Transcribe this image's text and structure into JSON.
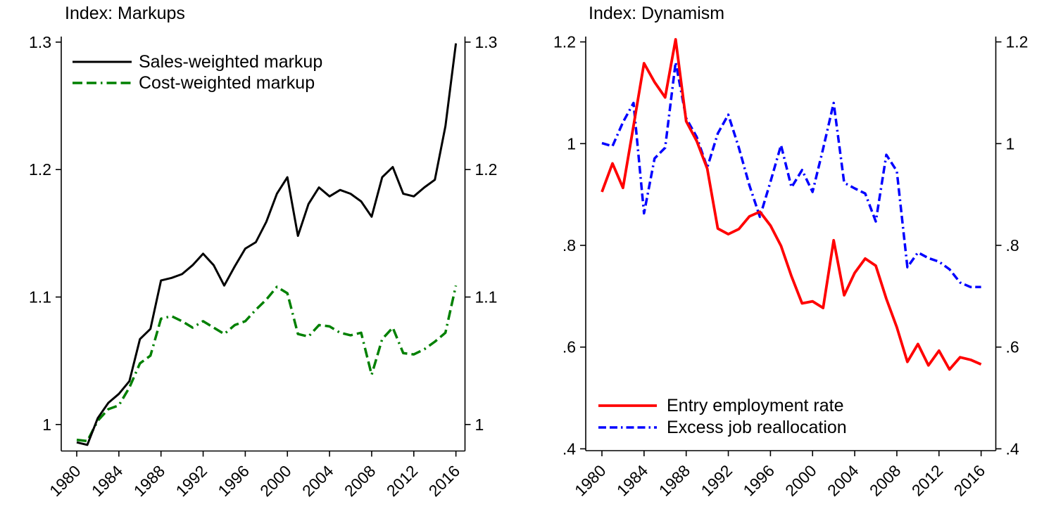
{
  "figure_title": "",
  "background_color": "#ffffff",
  "axis_color": "#000000",
  "chart_data": [
    {
      "panel": "markups",
      "type": "line",
      "title": "Index: Markups",
      "legend_position": "top-left",
      "x_ticks": [
        1980,
        1984,
        1988,
        1992,
        1996,
        2000,
        2004,
        2008,
        2012,
        2016
      ],
      "x_tick_labels": [
        "1980",
        "1984",
        "1988",
        "1992",
        "1996",
        "2000",
        "2004",
        "2008",
        "2012",
        "2016"
      ],
      "y_ticks": [
        1.3,
        1.2,
        1.1,
        1
      ],
      "y_tick_labels": [
        "1.3",
        "1.2",
        "1.1",
        "1"
      ],
      "ylim": [
        0.979,
        1.302
      ],
      "grid": false,
      "years": [
        1980,
        1981,
        1982,
        1983,
        1984,
        1985,
        1986,
        1987,
        1988,
        1989,
        1990,
        1991,
        1992,
        1993,
        1994,
        1995,
        1996,
        1997,
        1998,
        1999,
        2000,
        2001,
        2002,
        2003,
        2004,
        2005,
        2006,
        2007,
        2008,
        2009,
        2010,
        2011,
        2012,
        2013,
        2014,
        2015,
        2016
      ],
      "series": [
        {
          "name": "Sales-weighted markup",
          "color": "#000000",
          "style": "solid",
          "values": [
            0.986,
            0.984,
            1.005,
            1.017,
            1.024,
            1.034,
            1.067,
            1.075,
            1.113,
            1.115,
            1.118,
            1.125,
            1.134,
            1.125,
            1.109,
            1.124,
            1.138,
            1.143,
            1.159,
            1.181,
            1.194,
            1.148,
            1.173,
            1.186,
            1.179,
            1.184,
            1.181,
            1.175,
            1.163,
            1.194,
            1.202,
            1.181,
            1.179,
            1.186,
            1.192,
            1.234,
            1.299
          ]
        },
        {
          "name": "Cost-weighted markup",
          "color": "#008000",
          "style": "dash-dot",
          "values": [
            0.988,
            0.987,
            1.003,
            1.012,
            1.015,
            1.029,
            1.048,
            1.054,
            1.083,
            1.085,
            1.081,
            1.076,
            1.081,
            1.076,
            1.071,
            1.078,
            1.081,
            1.09,
            1.098,
            1.108,
            1.103,
            1.071,
            1.069,
            1.078,
            1.077,
            1.072,
            1.07,
            1.072,
            1.039,
            1.067,
            1.076,
            1.056,
            1.055,
            1.059,
            1.065,
            1.072,
            1.109
          ]
        }
      ]
    },
    {
      "panel": "dynamism",
      "type": "line",
      "title": "Index: Dynamism",
      "legend_position": "bottom-left",
      "x_ticks": [
        1980,
        1984,
        1988,
        1992,
        1996,
        2000,
        2004,
        2008,
        2012,
        2016
      ],
      "x_tick_labels": [
        "1980",
        "1984",
        "1988",
        "1992",
        "1996",
        "2000",
        "2004",
        "2008",
        "2012",
        "2016"
      ],
      "y_ticks": [
        1.2,
        1,
        0.8,
        0.6,
        0.4
      ],
      "y_tick_labels": [
        "1.2",
        "1",
        ".8",
        ".6",
        ".4"
      ],
      "ylim": [
        0.396,
        1.217
      ],
      "grid": false,
      "years": [
        1980,
        1981,
        1982,
        1983,
        1984,
        1985,
        1986,
        1987,
        1988,
        1989,
        1990,
        1991,
        1992,
        1993,
        1994,
        1995,
        1996,
        1997,
        1998,
        1999,
        2000,
        2001,
        2002,
        2003,
        2004,
        2005,
        2006,
        2007,
        2008,
        2009,
        2010,
        2011,
        2012,
        2013,
        2014,
        2015,
        2016
      ],
      "series": [
        {
          "name": "Entry employment rate",
          "color": "#ff0000",
          "style": "solid",
          "values": [
            0.905,
            0.961,
            0.913,
            1.035,
            1.158,
            1.121,
            1.091,
            1.205,
            1.044,
            1.005,
            0.951,
            0.833,
            0.822,
            0.832,
            0.857,
            0.866,
            0.839,
            0.799,
            0.739,
            0.686,
            0.69,
            0.677,
            0.81,
            0.702,
            0.746,
            0.774,
            0.76,
            0.695,
            0.639,
            0.571,
            0.606,
            0.564,
            0.593,
            0.556,
            0.58,
            0.575,
            0.566
          ]
        },
        {
          "name": "Excess job reallocation",
          "color": "#0000ff",
          "style": "dash-dot",
          "values": [
            1.001,
            0.995,
            1.042,
            1.08,
            0.863,
            0.971,
            0.992,
            1.16,
            1.05,
            1.013,
            0.953,
            1.02,
            1.057,
            0.992,
            0.918,
            0.856,
            0.925,
            0.997,
            0.914,
            0.948,
            0.905,
            0.99,
            1.08,
            0.923,
            0.912,
            0.902,
            0.847,
            0.978,
            0.946,
            0.757,
            0.786,
            0.775,
            0.768,
            0.753,
            0.727,
            0.718,
            0.718
          ]
        }
      ]
    }
  ]
}
